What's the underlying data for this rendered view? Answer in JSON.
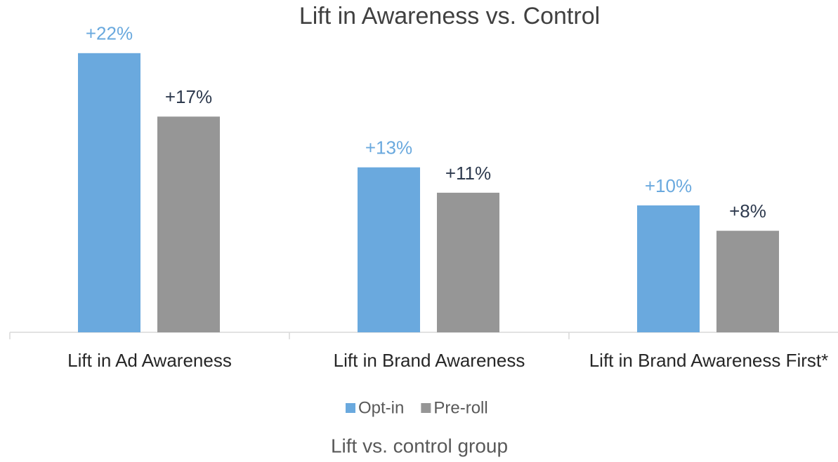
{
  "chart_data": {
    "type": "bar",
    "title": "Lift in Awareness vs. Control",
    "x_label": "Lift vs. control group",
    "categories": [
      "Lift in Ad Awareness",
      "Lift in Brand Awareness",
      "Lift in Brand Awareness First*"
    ],
    "series": [
      {
        "name": "Opt-in",
        "color": "#6aa9de",
        "label_color": "#6aa9de",
        "values": [
          22,
          13,
          10
        ],
        "value_labels": [
          "+22%",
          "+13%",
          "+10%"
        ]
      },
      {
        "name": "Pre-roll",
        "color": "#969696",
        "label_color": "#2e3a4e",
        "values": [
          17,
          11,
          8
        ],
        "value_labels": [
          "+17%",
          "+11%",
          "+8%"
        ]
      }
    ],
    "legend": "bottom"
  }
}
